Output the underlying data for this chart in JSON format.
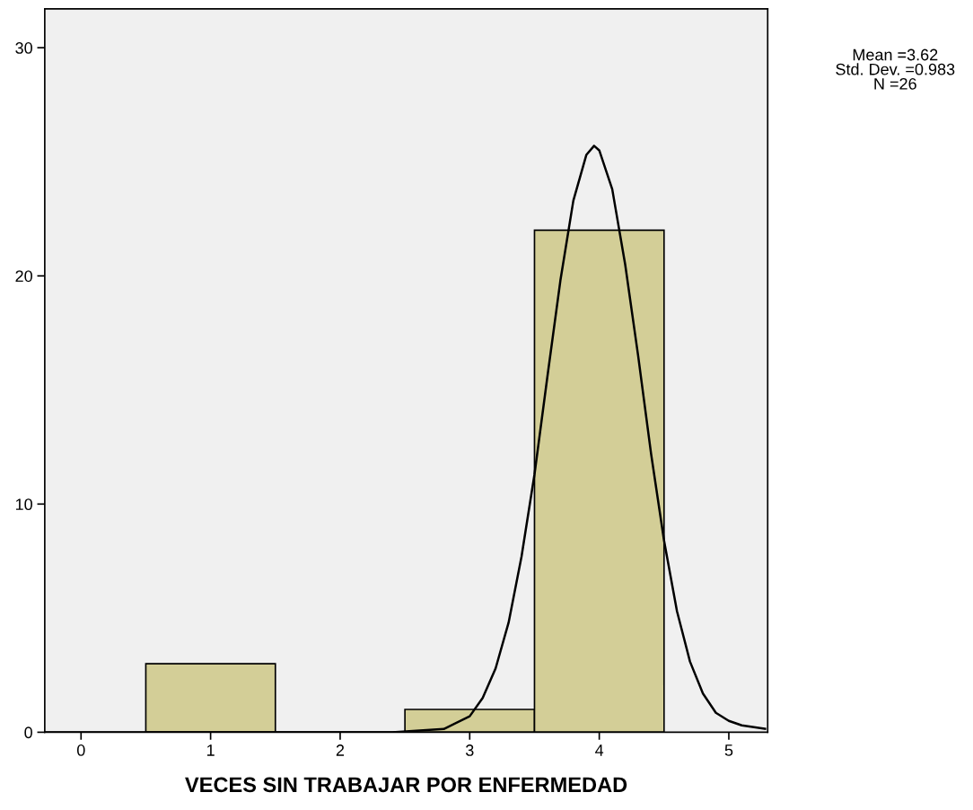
{
  "chart_data": {
    "type": "histogram",
    "xlabel": "VECES SIN TRABAJAR POR ENFERMEDAD",
    "annotations": [
      "Mean =3.62\nStd. Dev. =0.983\nN =26"
    ],
    "series": [
      {
        "color": "#d3ce97",
        "bins": [
          0.5,
          1.5,
          2.5,
          3.5,
          4.5
        ],
        "values": [
          3,
          0,
          1,
          22
        ]
      },
      {
        "type": "line",
        "color": "#000000",
        "x": [
          -0.28,
          2.4,
          2.8,
          3.0,
          3.1,
          3.2,
          3.3,
          3.4,
          3.5,
          3.6,
          3.7,
          3.8,
          3.9,
          3.96,
          4.0,
          4.1,
          4.2,
          4.3,
          4.4,
          4.5,
          4.6,
          4.7,
          4.8,
          4.9,
          5.0,
          5.1,
          5.28
        ],
        "values": [
          0,
          0,
          0.14,
          0.7,
          1.5,
          2.8,
          4.8,
          7.7,
          11.3,
          15.6,
          19.8,
          23.3,
          25.3,
          25.7,
          25.5,
          23.8,
          20.5,
          16.5,
          12.2,
          8.4,
          5.3,
          3.1,
          1.7,
          0.85,
          0.5,
          0.3,
          0.15
        ]
      }
    ],
    "xlim": [
      -0.28,
      5.3
    ],
    "ylim": [
      0,
      31.7
    ],
    "xticks": [
      0,
      1,
      2,
      3,
      4,
      5
    ],
    "yticks": [
      0,
      10,
      20,
      30
    ],
    "grid": false,
    "legend": false
  }
}
